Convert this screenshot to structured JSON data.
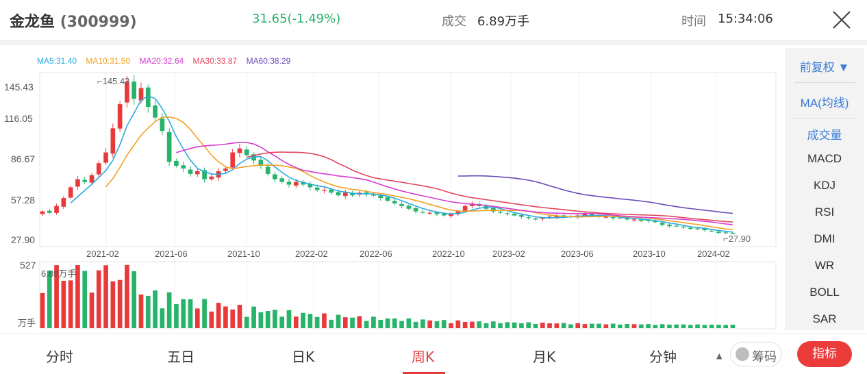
{
  "header": {
    "stock_name": "金龙鱼",
    "stock_code": "(300999)",
    "price_change": "31.65(-1.49%)",
    "volume_label": "成交",
    "volume_value": "6.89万手",
    "time_label": "时间",
    "time_value": "15:34:06"
  },
  "ma_legend": [
    {
      "label": "MA5:31.40",
      "color": "#29a9e0"
    },
    {
      "label": "MA10:31.50",
      "color": "#f0a020"
    },
    {
      "label": "MA20:32.64",
      "color": "#d63bd0"
    },
    {
      "label": "MA30:33.87",
      "color": "#e0455a"
    },
    {
      "label": "MA60:38.29",
      "color": "#6a4ab8"
    }
  ],
  "price_chart": {
    "y_ticks": [
      "145.43",
      "116.05",
      "86.67",
      "57.28",
      "27.90"
    ],
    "x_ticks": [
      "2021-02",
      "2021-06",
      "2021-10",
      "2022-02",
      "2022-06",
      "2022-10",
      "2023-02",
      "2023-06",
      "2023-10",
      "2024-02"
    ],
    "high_label": "145.43",
    "low_label": "27.90"
  },
  "volume_chart": {
    "max_label": "527",
    "current_label": "6.89万手",
    "unit_label": "万手"
  },
  "chart_data": {
    "type": "candlestick",
    "interval": "weekly",
    "ylim": [
      27.9,
      145.43
    ],
    "close": [
      48,
      47,
      52,
      58,
      66,
      72,
      70,
      75,
      84,
      92,
      110,
      128,
      145,
      132,
      140,
      126,
      118,
      108,
      85,
      82,
      80,
      76,
      78,
      72,
      74,
      78,
      80,
      92,
      95,
      90,
      86,
      82,
      76,
      72,
      70,
      68,
      70,
      68,
      66,
      64,
      64,
      62,
      60,
      62,
      60,
      62,
      61,
      60,
      58,
      56,
      54,
      52,
      50,
      48,
      47,
      47,
      46,
      45,
      46,
      48,
      52,
      54,
      52,
      50,
      48,
      47,
      46,
      45,
      44,
      43,
      42,
      43,
      44,
      45,
      44,
      44,
      45,
      46,
      45,
      44,
      44,
      43,
      43,
      42,
      42,
      41,
      41,
      40,
      38,
      37,
      37,
      36,
      35,
      35,
      34,
      33,
      32,
      32,
      31.65
    ],
    "volume_max": 527,
    "colors": {
      "up": "#e8393b",
      "down": "#27b36a"
    }
  },
  "indicators": {
    "rights": "前复权",
    "items": [
      "MA(均线)",
      "成交量",
      "MACD",
      "KDJ",
      "RSI",
      "DMI",
      "WR",
      "BOLL",
      "SAR"
    ]
  },
  "bottom_tabs": {
    "items": [
      "分时",
      "五日",
      "日K",
      "周K",
      "月K",
      "分钟"
    ],
    "chip_label": "筹码",
    "primary_label": "指标"
  }
}
